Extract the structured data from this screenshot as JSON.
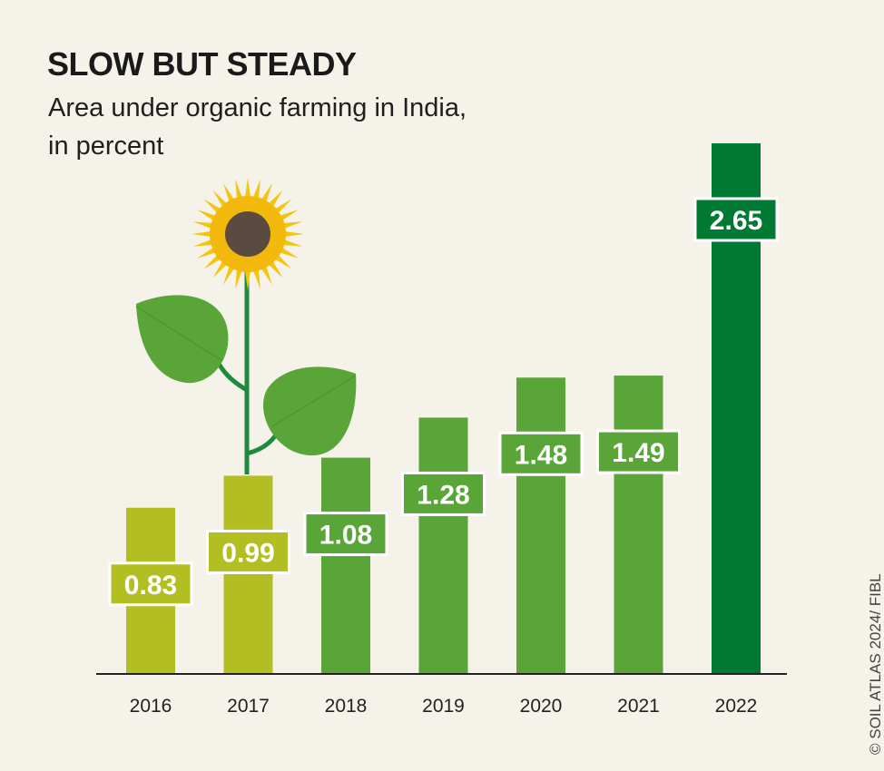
{
  "header": {
    "title": "SLOW BUT STEADY",
    "subtitle_line1": "Area under organic farming in India,",
    "subtitle_line2": "in percent"
  },
  "credit": "© SOIL ATLAS 2024/ FIBL",
  "colors": {
    "background": "#f5f2ea",
    "bar_early": "#b3be22",
    "bar_mid": "#5aa537",
    "bar_latest": "#007a33",
    "leaf": "#5aa537",
    "stem": "#1e8a3c",
    "petal": "#f4c40f",
    "flower_center": "#5b4a3f"
  },
  "chart_data": {
    "type": "bar",
    "title": "SLOW BUT STEADY",
    "subtitle": "Area under organic farming in India, in percent",
    "xlabel": "",
    "ylabel": "",
    "categories": [
      "2016",
      "2017",
      "2018",
      "2019",
      "2020",
      "2021",
      "2022"
    ],
    "values": [
      0.83,
      0.99,
      1.08,
      1.28,
      1.48,
      1.49,
      2.65
    ],
    "value_labels": [
      "0.83",
      "0.99",
      "1.08",
      "1.28",
      "1.48",
      "1.49",
      "2.65"
    ],
    "bar_colors": [
      "#b3be22",
      "#b3be22",
      "#5aa537",
      "#5aa537",
      "#5aa537",
      "#5aa537",
      "#007a33"
    ],
    "ylim": [
      0,
      2.65
    ],
    "grid": false,
    "legend": "none"
  }
}
